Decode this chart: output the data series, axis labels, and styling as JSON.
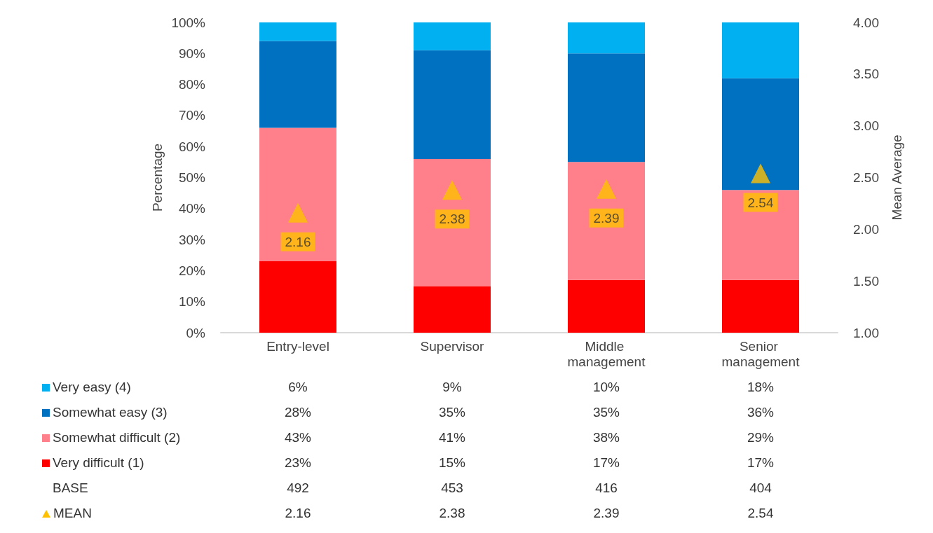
{
  "chart_data": {
    "type": "bar",
    "stacked": true,
    "ylabel": "Percentage",
    "y2label": "Mean Average",
    "categories": [
      "Entry-level",
      "Supervisor",
      "Middle management",
      "Senior management"
    ],
    "series": [
      {
        "name": "Very difficult (1)",
        "color": "#ff0000",
        "values": [
          23,
          15,
          17,
          17
        ],
        "value_labels": [
          "23%",
          "15%",
          "17%",
          "17%"
        ]
      },
      {
        "name": "Somewhat difficult (2)",
        "color": "#ff808b",
        "values": [
          43,
          41,
          38,
          29
        ],
        "value_labels": [
          "43%",
          "41%",
          "38%",
          "29%"
        ]
      },
      {
        "name": "Somewhat easy (3)",
        "color": "#0070c0",
        "values": [
          28,
          35,
          35,
          36
        ],
        "value_labels": [
          "28%",
          "35%",
          "35%",
          "36%"
        ]
      },
      {
        "name": "Very easy (4)",
        "color": "#00b0f0",
        "values": [
          6,
          9,
          10,
          18
        ],
        "value_labels": [
          "6%",
          "9%",
          "10%",
          "18%"
        ]
      },
      {
        "name": "MEAN",
        "type": "scatter",
        "axis": "y2",
        "marker": "triangle",
        "color": "#ffc000",
        "values": [
          2.16,
          2.38,
          2.39,
          2.54
        ],
        "value_labels": [
          "2.16",
          "2.38",
          "2.39",
          "2.54"
        ]
      }
    ],
    "annotations": [
      "BASE",
      "492",
      "453",
      "416",
      "404"
    ],
    "ylim": [
      0,
      100
    ],
    "yticks": [
      {
        "value": 0,
        "label": "0%"
      },
      {
        "value": 10,
        "label": "10%"
      },
      {
        "value": 20,
        "label": "20%"
      },
      {
        "value": 30,
        "label": "30%"
      },
      {
        "value": 40,
        "label": "40%"
      },
      {
        "value": 50,
        "label": "50%"
      },
      {
        "value": 60,
        "label": "60%"
      },
      {
        "value": 70,
        "label": "70%"
      },
      {
        "value": 80,
        "label": "80%"
      },
      {
        "value": 90,
        "label": "90%"
      },
      {
        "value": 100,
        "label": "100%"
      }
    ],
    "y2lim": [
      1,
      4
    ],
    "y2ticks": [
      {
        "value": 1,
        "label": "1.00"
      },
      {
        "value": 1.5,
        "label": "1.50"
      },
      {
        "value": 2,
        "label": "2.00"
      },
      {
        "value": 2.5,
        "label": "2.50"
      },
      {
        "value": 3,
        "label": "3.00"
      },
      {
        "value": 3.5,
        "label": "3.50"
      },
      {
        "value": 4,
        "label": "4.00"
      }
    ],
    "grid": false,
    "legend": "bottom"
  }
}
